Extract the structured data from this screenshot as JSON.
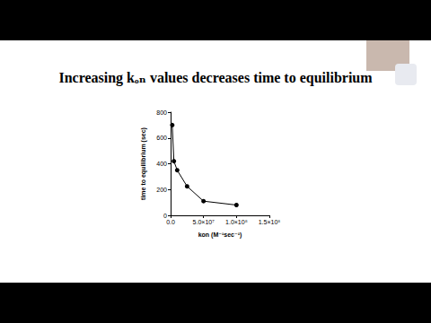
{
  "chart_data": {
    "type": "line",
    "title": "Increasing kₒₙ values decreases time to equilibrium",
    "x_label": "kon (M⁻¹sec⁻¹)",
    "y_label": "time to equilibrium (sec)",
    "x": [
      2500000,
      5000000,
      10000000,
      25000000,
      50000000,
      100000000
    ],
    "values": [
      700,
      420,
      350,
      225,
      110,
      80
    ],
    "color": "#000000",
    "marker": "circle",
    "xlim": [
      0,
      150000000
    ],
    "xticks": [
      {
        "value": 0,
        "label": "0.0"
      },
      {
        "value": 50000000,
        "label": "5.0×10⁷"
      },
      {
        "value": 100000000,
        "label": "1.0×10⁸"
      },
      {
        "value": 150000000,
        "label": "1.5×10⁸"
      }
    ],
    "ylim": [
      0,
      800
    ],
    "yticks": [
      0,
      200,
      400,
      600,
      800
    ],
    "grid": false
  }
}
